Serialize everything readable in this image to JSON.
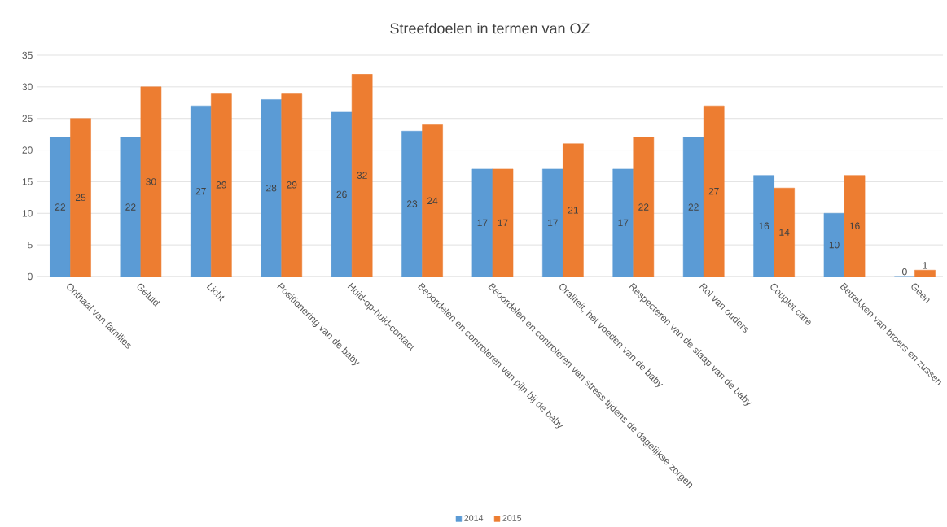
{
  "chart_data": {
    "type": "bar",
    "title": "Streefdoelen in termen van OZ",
    "categories": [
      "Onthaal van families",
      "Geluid",
      "Licht",
      "Positionering van de baby",
      "Huid-op-huid-contact",
      "Beoordelen en controleren van pijn bij de baby",
      "Beoordelen en controleren van stress tijdens de dagelijkse zorgen",
      "Oraliteit, het voeden van de baby",
      "Respecteren van de slaap van de baby",
      "Rol van ouders",
      "Couplet care",
      "Betrekken van broers en zussen",
      "Geen"
    ],
    "series": [
      {
        "name": "2014",
        "color": "#5b9bd5",
        "values": [
          22,
          22,
          27,
          28,
          26,
          23,
          17,
          17,
          17,
          22,
          16,
          10,
          0
        ]
      },
      {
        "name": "2015",
        "color": "#ed7d31",
        "values": [
          25,
          30,
          29,
          29,
          32,
          24,
          17,
          21,
          22,
          27,
          14,
          16,
          1
        ]
      }
    ],
    "ylim": [
      0,
      35
    ],
    "yticks": [
      0,
      5,
      10,
      15,
      20,
      25,
      30,
      35
    ],
    "grid": "y",
    "legend": "bottom",
    "data_labels": true
  }
}
